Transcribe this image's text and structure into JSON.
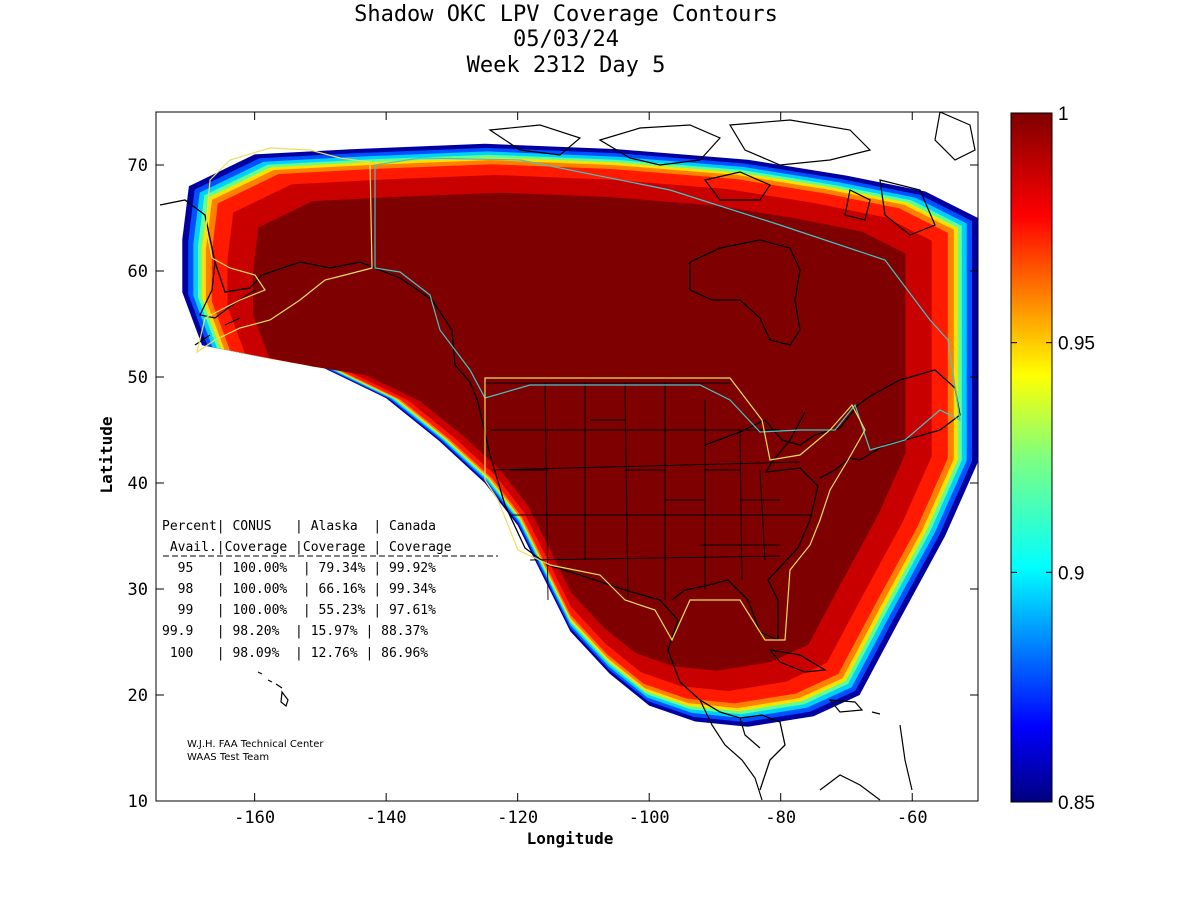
{
  "chart_data": {
    "type": "heatmap",
    "title": [
      "Shadow OKC LPV Coverage Contours",
      "05/03/24",
      "Week 2312 Day 5"
    ],
    "xlabel": "Longitude",
    "ylabel": "Latitude",
    "xlim": [
      -175,
      -50
    ],
    "ylim": [
      10,
      75
    ],
    "xticks": [
      -160,
      -140,
      -120,
      -100,
      -80,
      -60
    ],
    "xtick_labels": [
      "-160",
      "-140",
      "-120",
      "-100",
      "-80",
      "-60"
    ],
    "yticks": [
      10,
      20,
      30,
      40,
      50,
      60,
      70
    ],
    "ytick_labels": [
      "10",
      "20",
      "30",
      "40",
      "50",
      "60",
      "70"
    ],
    "colorbar": {
      "range": [
        0.85,
        1
      ],
      "ticks": [
        0.85,
        0.9,
        0.95,
        1
      ],
      "tick_labels": [
        "0.85",
        "0.9",
        "0.95",
        "1"
      ],
      "colormap": "jet"
    },
    "coverage_region": {
      "description_level_bands": [
        0.85,
        0.9,
        0.95,
        0.98,
        0.99,
        1.0
      ],
      "outline_lon_lat": [
        [
          -170,
          68
        ],
        [
          -160,
          71
        ],
        [
          -145,
          71.5
        ],
        [
          -125,
          72
        ],
        [
          -105,
          71.5
        ],
        [
          -85,
          70.5
        ],
        [
          -70,
          69
        ],
        [
          -58,
          67.5
        ],
        [
          -50,
          65
        ],
        [
          -50,
          42
        ],
        [
          -55,
          35
        ],
        [
          -62,
          27
        ],
        [
          -68,
          20
        ],
        [
          -75,
          18
        ],
        [
          -85,
          17
        ],
        [
          -93,
          17.5
        ],
        [
          -100,
          19
        ],
        [
          -106,
          22
        ],
        [
          -112,
          26
        ],
        [
          -116,
          31
        ],
        [
          -120,
          36
        ],
        [
          -125,
          40
        ],
        [
          -132,
          44
        ],
        [
          -140,
          48
        ],
        [
          -150,
          51
        ],
        [
          -160,
          52
        ],
        [
          -168,
          53
        ],
        [
          -171,
          58
        ],
        [
          -171,
          63
        ]
      ]
    },
    "table": {
      "header1": "Percent| CONUS   | Alaska  | Canada",
      "header2": " Avail.|Coverage |Coverage | Coverage",
      "rows": [
        "  95   | 100.00%  | 79.34% | 99.92%",
        "  98   | 100.00%  | 66.16% | 99.34%",
        "  99   | 100.00%  | 55.23% | 97.61%",
        "99.9   | 98.20%  | 15.97% | 88.37%",
        " 100   | 98.09%  | 12.76% | 86.96%"
      ]
    },
    "credit": [
      "W.J.H. FAA Technical Center",
      "WAAS Test Team"
    ]
  }
}
